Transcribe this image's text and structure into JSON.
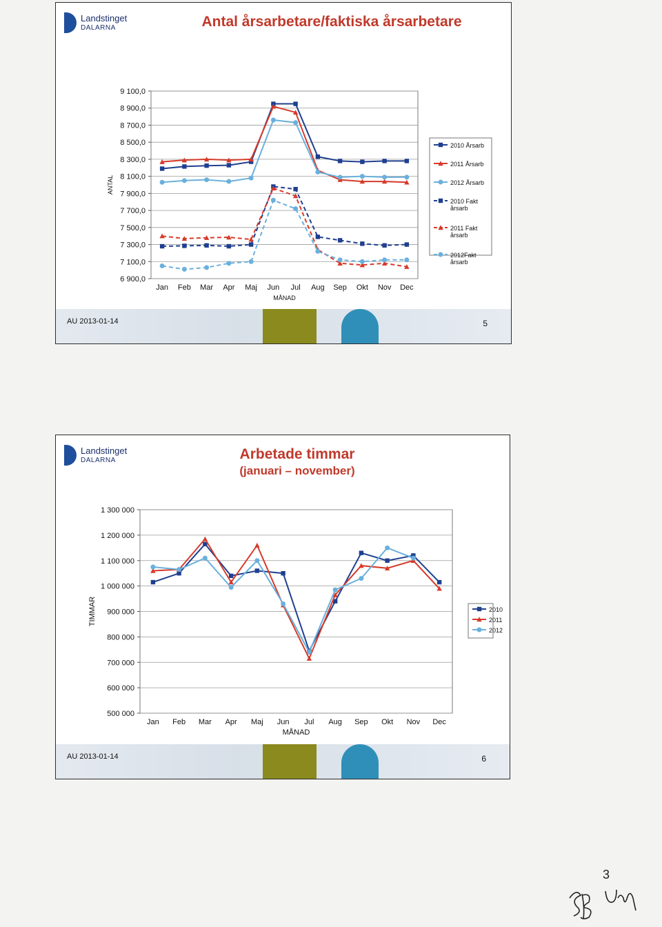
{
  "slides": [
    {
      "title": "Antal årsarbetare/faktiska årsarbetare",
      "subtitle": "",
      "footer_date": "AU 2013-01-14",
      "page": "5",
      "logo": {
        "name": "Landstinget",
        "sub": "DALARNA"
      }
    },
    {
      "title": "Arbetade timmar",
      "subtitle": "(januari – november)",
      "footer_date": "AU 2013-01-14",
      "page": "6",
      "logo": {
        "name": "Landstinget",
        "sub": "DALARNA"
      }
    }
  ],
  "handwritten_note": {
    "page_number": "3",
    "initials": "SB UM"
  },
  "chart_data": [
    {
      "type": "line",
      "title": "Antal årsarbetare/faktiska årsarbetare",
      "xlabel": "MÅNAD",
      "ylabel": "ANTAL",
      "ylim": [
        6900,
        9100
      ],
      "yticks": [
        6900,
        7100,
        7300,
        7500,
        7700,
        7900,
        8100,
        8300,
        8500,
        8700,
        8900,
        9100
      ],
      "ytick_labels": [
        "6 900,0",
        "7 100,0",
        "7 300,0",
        "7 500,0",
        "7 700,0",
        "7 900,0",
        "8 100,0",
        "8 300,0",
        "8 500,0",
        "8 700,0",
        "8 900,0",
        "9 100,0"
      ],
      "categories": [
        "Jan",
        "Feb",
        "Mar",
        "Apr",
        "Maj",
        "Jun",
        "Jul",
        "Aug",
        "Sep",
        "Okt",
        "Nov",
        "Dec"
      ],
      "grid": true,
      "legend": "right",
      "series": [
        {
          "name": "2010 Årsarb",
          "color": "#1f3f8f",
          "dash": false,
          "marker": "square",
          "values": [
            8190,
            8215,
            8225,
            8230,
            8270,
            8950,
            8950,
            8330,
            8280,
            8270,
            8280,
            8280
          ]
        },
        {
          "name": "2011 Årsarb",
          "color": "#d63a2a",
          "dash": false,
          "marker": "triangle",
          "values": [
            8270,
            8290,
            8300,
            8290,
            8300,
            8920,
            8850,
            8170,
            8060,
            8040,
            8040,
            8030
          ]
        },
        {
          "name": "2012 Årsarb",
          "color": "#6ab0dc",
          "dash": false,
          "marker": "circle",
          "values": [
            8030,
            8050,
            8060,
            8040,
            8080,
            8760,
            8730,
            8150,
            8090,
            8100,
            8090,
            8090
          ]
        },
        {
          "name": "2010 Fakt årsarb",
          "color": "#1f3f8f",
          "dash": true,
          "marker": "square",
          "values": [
            7280,
            7285,
            7290,
            7280,
            7300,
            7980,
            7950,
            7390,
            7350,
            7310,
            7290,
            7300
          ]
        },
        {
          "name": "2011 Fakt årsarb",
          "color": "#d63a2a",
          "dash": true,
          "marker": "triangle",
          "values": [
            7400,
            7370,
            7380,
            7385,
            7360,
            7960,
            7870,
            7240,
            7080,
            7060,
            7080,
            7040
          ]
        },
        {
          "name": "2012Fakt årsarb",
          "color": "#6ab0dc",
          "dash": true,
          "marker": "circle",
          "values": [
            7050,
            7010,
            7030,
            7080,
            7100,
            7820,
            7720,
            7220,
            7120,
            7100,
            7120,
            7120
          ]
        }
      ]
    },
    {
      "type": "line",
      "title": "Arbetade timmar",
      "subtitle": "(januari – november)",
      "xlabel": "MÅNAD",
      "ylabel": "TIMMAR",
      "ylim": [
        500000,
        1300000
      ],
      "yticks": [
        500000,
        600000,
        700000,
        800000,
        900000,
        1000000,
        1100000,
        1200000,
        1300000
      ],
      "ytick_labels": [
        "500 000",
        "600 000",
        "700 000",
        "800 000",
        "900 000",
        "1 000 000",
        "1 100 000",
        "1 200 000",
        "1 300 000"
      ],
      "categories": [
        "Jan",
        "Feb",
        "Mar",
        "Apr",
        "Maj",
        "Jun",
        "Jul",
        "Aug",
        "Sep",
        "Okt",
        "Nov",
        "Dec"
      ],
      "grid": true,
      "legend": "right",
      "series": [
        {
          "name": "2010",
          "color": "#1f3f8f",
          "marker": "square",
          "values": [
            1015000,
            1050000,
            1165000,
            1040000,
            1060000,
            1050000,
            745000,
            940000,
            1130000,
            1100000,
            1120000,
            1015000
          ]
        },
        {
          "name": "2011",
          "color": "#d63a2a",
          "marker": "triangle",
          "values": [
            1060000,
            1065000,
            1185000,
            1015000,
            1160000,
            925000,
            715000,
            965000,
            1080000,
            1070000,
            1100000,
            990000
          ]
        },
        {
          "name": "2012",
          "color": "#6ab0dc",
          "marker": "circle",
          "values": [
            1075000,
            1065000,
            1110000,
            995000,
            1100000,
            930000,
            740000,
            985000,
            1030000,
            1150000,
            1110000,
            null
          ]
        }
      ]
    }
  ]
}
